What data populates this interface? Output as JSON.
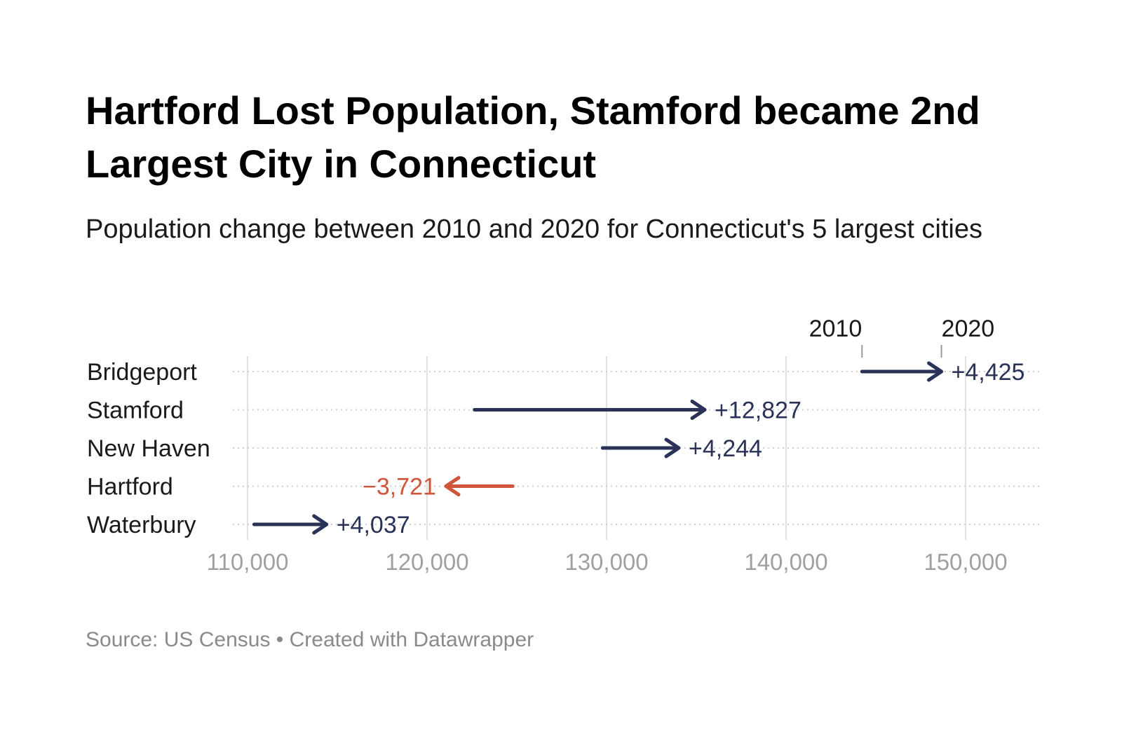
{
  "title": "Hartford Lost Population, Stamford became 2nd Largest City in Connecticut",
  "subtitle": "Population change between 2010 and 2020 for Connecticut's 5 largest cities",
  "footer": "Source: US Census • Created with Datawrapper",
  "colors": {
    "increase": "#2a3257",
    "decrease": "#d0553a",
    "grid": "#e2e2e2"
  },
  "chart_data": {
    "type": "arrow",
    "legend_labels": [
      "2010",
      "2020"
    ],
    "x_ticks": [
      110000,
      120000,
      130000,
      140000,
      150000
    ],
    "x_tick_labels": [
      "110,000",
      "120,000",
      "130,000",
      "140,000",
      "150,000"
    ],
    "rows": [
      {
        "city": "Bridgeport",
        "y2010": 144229,
        "y2020": 148654,
        "change_label": "+4,425"
      },
      {
        "city": "Stamford",
        "y2010": 122643,
        "y2020": 135470,
        "change_label": "+12,827"
      },
      {
        "city": "New Haven",
        "y2010": 129779,
        "y2020": 134023,
        "change_label": "+4,244"
      },
      {
        "city": "Hartford",
        "y2010": 124775,
        "y2020": 121054,
        "change_label": "−3,721"
      },
      {
        "city": "Waterbury",
        "y2010": 110366,
        "y2020": 114403,
        "change_label": "+4,037"
      }
    ]
  }
}
